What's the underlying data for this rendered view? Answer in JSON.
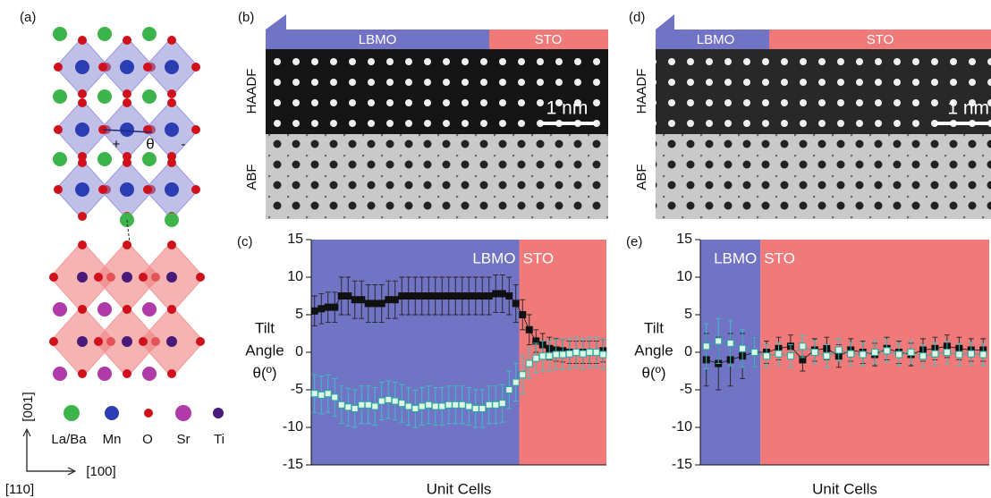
{
  "panel_a": {
    "label": "(a)",
    "angle_plus": "+",
    "angle_theta": "θ",
    "angle_minus": "-",
    "axes": [
      "[001]",
      "[100]",
      "[110]"
    ],
    "legend": [
      "La/Ba",
      "Mn",
      "O",
      "Sr",
      "Ti"
    ]
  },
  "panel_b": {
    "label": "(b)",
    "bar": [
      "LBMO",
      "STO"
    ],
    "rows": [
      "HAADF",
      "ABF"
    ],
    "scale": "1 nm"
  },
  "panel_d": {
    "label": "(d)",
    "bar": [
      "LBMO",
      "STO"
    ],
    "rows": [
      "HAADF",
      "ABF"
    ],
    "scale": "1 nm"
  },
  "chart_data": [
    {
      "type": "line",
      "label": "(c)",
      "ylabel": [
        "Tilt",
        "Angle",
        "θ(º)"
      ],
      "xlabel": "Unit Cells",
      "categories": [
        null,
        null,
        null,
        null,
        null,
        null,
        null,
        null,
        null,
        null,
        null,
        null,
        null,
        null,
        null,
        null,
        null,
        null,
        null,
        null,
        null,
        null,
        null,
        null,
        null,
        null,
        null,
        null,
        null,
        null,
        null,
        null,
        null,
        null,
        null,
        null,
        null,
        null,
        null,
        null,
        null,
        null,
        null,
        null
      ],
      "ylim": [
        -15,
        15
      ],
      "yticks": [
        -15,
        -10,
        -5,
        0,
        5,
        10,
        15
      ],
      "regions": [
        {
          "label": "LBMO",
          "color": "#7173c4",
          "start": 0,
          "end": 30
        },
        {
          "label": "STO",
          "color": "#f07a7a",
          "start": 31,
          "end": 43
        }
      ],
      "series": [
        {
          "color": "#111111",
          "edge": "#111111",
          "error_color": "#222222",
          "values": [
            5.5,
            5.8,
            6,
            6,
            7.5,
            7.5,
            7,
            7,
            6.5,
            6.5,
            6.5,
            7,
            7,
            7.5,
            7.5,
            7.5,
            7.5,
            7.5,
            7.5,
            7.5,
            7.5,
            7.5,
            7.5,
            7.5,
            7.5,
            7.5,
            7.5,
            7.8,
            7.8,
            7.5,
            6.5,
            5,
            3,
            1.5,
            1,
            0.5,
            0.3,
            0.2,
            0,
            0,
            0,
            0,
            0,
            0.2
          ],
          "errors": [
            2,
            2,
            2,
            2,
            2.5,
            2.5,
            2.5,
            2.5,
            2.5,
            2.5,
            2.5,
            2.5,
            2.5,
            2.5,
            2.5,
            2.5,
            2.5,
            2.5,
            2.5,
            2.5,
            2.5,
            2.5,
            2.5,
            2.5,
            2.5,
            2.5,
            2.5,
            2.5,
            2.5,
            2.5,
            2.5,
            2,
            2,
            1.5,
            1.5,
            1.5,
            1.5,
            1.5,
            1.5,
            1.5,
            1.5,
            1.5,
            1.5,
            1.5
          ]
        },
        {
          "color": "#dff7e0",
          "edge": "#2aa7a7",
          "error_color": "#39c6c6",
          "values": [
            -5.5,
            -5.7,
            -5.5,
            -6,
            -7,
            -7.3,
            -7.5,
            -7,
            -7,
            -7.2,
            -6.5,
            -6.3,
            -6.5,
            -6.8,
            -7.2,
            -7.5,
            -7.2,
            -7,
            -7.2,
            -7.2,
            -7,
            -7,
            -7,
            -7.2,
            -7.5,
            -7.5,
            -7,
            -7,
            -6.8,
            -5,
            -4,
            -3,
            -1.5,
            -0.8,
            -0.5,
            -0.5,
            -0.3,
            -0.3,
            -0.2,
            0,
            -0.2,
            0,
            0,
            -0.3
          ],
          "errors": [
            2.5,
            2.5,
            2.5,
            2.5,
            2.5,
            2.5,
            2.5,
            2.5,
            2.5,
            2.5,
            2.5,
            2.5,
            2.5,
            2.5,
            2.5,
            2.5,
            2.5,
            2.5,
            2.5,
            2.5,
            2.5,
            2.5,
            2.5,
            2.5,
            2.5,
            2.5,
            2.5,
            2.5,
            2.5,
            2.5,
            2.5,
            2.5,
            2,
            2,
            2,
            2,
            2,
            2,
            2,
            2,
            2,
            2,
            2,
            2
          ]
        }
      ]
    },
    {
      "type": "line",
      "label": "(e)",
      "ylabel": [
        "Tilt",
        "Angle",
        "θ(º)"
      ],
      "xlabel": "Unit Cells",
      "categories": [
        null,
        null,
        null,
        null,
        null,
        null,
        null,
        null,
        null,
        null,
        null,
        null,
        null,
        null,
        null,
        null,
        null,
        null,
        null,
        null,
        null,
        null,
        null,
        null
      ],
      "ylim": [
        -15,
        15
      ],
      "yticks": [
        -15,
        -10,
        -5,
        0,
        5,
        10,
        15
      ],
      "regions": [
        {
          "label": "LBMO",
          "color": "#7173c4",
          "start": 0,
          "end": 4
        },
        {
          "label": "STO",
          "color": "#f07a7a",
          "start": 5,
          "end": 23
        }
      ],
      "series": [
        {
          "color": "#111111",
          "edge": "#111111",
          "error_color": "#222222",
          "values": [
            -1,
            -1.5,
            -1,
            -0.5,
            0,
            0,
            0.5,
            0.8,
            -1,
            0.3,
            0.5,
            -0.5,
            0.3,
            0,
            -0.3,
            0.5,
            0,
            -0.3,
            0.3,
            0.5,
            0.8,
            0.5,
            0.3,
            0.3
          ],
          "errors": [
            3.5,
            3.5,
            3.5,
            3,
            2,
            1.5,
            1.5,
            1.5,
            1.5,
            1.5,
            1.5,
            1.5,
            1.5,
            1.5,
            1.5,
            1.5,
            1.5,
            1.5,
            1.5,
            1.5,
            1.5,
            1.5,
            1.5,
            1.5
          ]
        },
        {
          "color": "#dff7e0",
          "edge": "#2aa7a7",
          "error_color": "#39c6c6",
          "values": [
            0.8,
            1.5,
            1.2,
            0.5,
            0,
            -0.5,
            -0.2,
            -0.5,
            0.8,
            0,
            -0.5,
            0.3,
            -0.2,
            -0.3,
            0,
            0.2,
            -0.3,
            0,
            -0.5,
            -0.2,
            0,
            -0.3,
            -0.2,
            -0.3
          ],
          "errors": [
            3,
            3,
            3,
            2.5,
            2,
            1.5,
            1.5,
            1.5,
            1.5,
            1.5,
            1.5,
            1.5,
            1.5,
            1.5,
            1.5,
            1.5,
            1.5,
            1.5,
            1.5,
            1.5,
            1.5,
            1.5,
            1.5,
            1.5
          ]
        }
      ]
    }
  ]
}
